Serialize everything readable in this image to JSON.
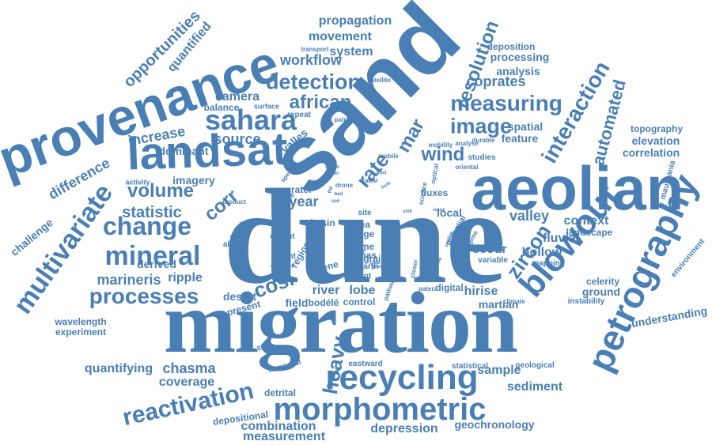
{
  "color": "#4a7fb5",
  "words": [
    {
      "t": "dune",
      "s": "serif"
    },
    {
      "t": "migration",
      "s": "serif"
    },
    {
      "t": "sand",
      "s": "sans"
    },
    {
      "t": "provenance",
      "s": "sans"
    },
    {
      "t": "aeolian",
      "s": "sans"
    },
    {
      "t": "landsat",
      "s": "sans"
    },
    {
      "t": "morphometric",
      "s": "sans"
    },
    {
      "t": "petrography",
      "s": "sans"
    },
    {
      "t": "recycling",
      "s": "sans"
    },
    {
      "t": "blowout",
      "s": "sans"
    },
    {
      "t": "multivariate",
      "s": "sans"
    },
    {
      "t": "mineral",
      "s": "sans"
    },
    {
      "t": "reactivation",
      "s": "sans"
    },
    {
      "t": "sahara",
      "s": "sans"
    },
    {
      "t": "change",
      "s": "sans"
    },
    {
      "t": "processes",
      "s": "sans"
    },
    {
      "t": "interaction",
      "s": "sans"
    },
    {
      "t": "automated",
      "s": "sans"
    },
    {
      "t": "zircon",
      "s": "sans"
    },
    {
      "t": "measuring",
      "s": "sans"
    },
    {
      "t": "resolution",
      "s": "sans"
    },
    {
      "t": "detection",
      "s": "sans"
    },
    {
      "t": "image",
      "s": "sans"
    },
    {
      "t": "volume",
      "s": "sans"
    },
    {
      "t": "heavy",
      "s": "sans"
    },
    {
      "t": "rate",
      "s": "sans"
    },
    {
      "t": "wind",
      "s": "sans"
    },
    {
      "t": "mar",
      "s": "sans"
    },
    {
      "t": "corr",
      "s": "sans"
    },
    {
      "t": "cosi",
      "s": "sans"
    },
    {
      "t": "african",
      "s": "sans"
    },
    {
      "t": "opportunities",
      "s": "sans"
    },
    {
      "t": "quantified",
      "s": "sans"
    },
    {
      "t": "propagation",
      "s": "sans"
    },
    {
      "t": "movement",
      "s": "sans"
    },
    {
      "t": "system",
      "s": "sans"
    },
    {
      "t": "workflow",
      "s": "sans"
    },
    {
      "t": "camera",
      "s": "sans"
    },
    {
      "t": "balance",
      "s": "sans"
    },
    {
      "t": "surface",
      "s": "sans"
    },
    {
      "t": "repeat",
      "s": "sans"
    },
    {
      "t": "pairing",
      "s": "sans"
    },
    {
      "t": "satellite",
      "s": "sans"
    },
    {
      "t": "transport",
      "s": "sans"
    },
    {
      "t": "deposition",
      "s": "sans"
    },
    {
      "t": "processing",
      "s": "sans"
    },
    {
      "t": "analysis",
      "s": "sans"
    },
    {
      "t": "coprates",
      "s": "sans"
    },
    {
      "t": "increase",
      "s": "sans"
    },
    {
      "t": "dominant",
      "s": "sans"
    },
    {
      "t": "source",
      "s": "sans"
    },
    {
      "t": "statistic",
      "s": "sans"
    },
    {
      "t": "difference",
      "s": "sans"
    },
    {
      "t": "imagery",
      "s": "sans"
    },
    {
      "t": "activity",
      "s": "sans"
    },
    {
      "t": "challenge",
      "s": "sans"
    },
    {
      "t": "valles",
      "s": "sans"
    },
    {
      "t": "spatial",
      "s": "sans"
    },
    {
      "t": "feature",
      "s": "sans"
    },
    {
      "t": "topography",
      "s": "sans"
    },
    {
      "t": "elevation",
      "s": "sans"
    },
    {
      "t": "correlation",
      "s": "sans"
    },
    {
      "t": "mauritania",
      "s": "sans"
    },
    {
      "t": "valley",
      "s": "sans"
    },
    {
      "t": "context",
      "s": "sans"
    },
    {
      "t": "landscape",
      "s": "sans"
    },
    {
      "t": "fluvial",
      "s": "sans"
    },
    {
      "t": "hollow",
      "s": "sans"
    },
    {
      "t": "mapping",
      "s": "sans"
    },
    {
      "t": "scour",
      "s": "sans"
    },
    {
      "t": "variable",
      "s": "sans"
    },
    {
      "t": "celerity",
      "s": "sans"
    },
    {
      "t": "ground",
      "s": "sans"
    },
    {
      "t": "instability",
      "s": "sans"
    },
    {
      "t": "environment",
      "s": "sans"
    },
    {
      "t": "understanding",
      "s": "sans"
    },
    {
      "t": "marineris",
      "s": "sans"
    },
    {
      "t": "ripple",
      "s": "sans"
    },
    {
      "t": "derived",
      "s": "sans"
    },
    {
      "t": "desert",
      "s": "sans"
    },
    {
      "t": "present",
      "s": "sans"
    },
    {
      "t": "field",
      "s": "sans"
    },
    {
      "t": "river",
      "s": "sans"
    },
    {
      "t": "lobe",
      "s": "sans"
    },
    {
      "t": "bodélé",
      "s": "sans"
    },
    {
      "t": "control",
      "s": "sans"
    },
    {
      "t": "hirise",
      "s": "sans"
    },
    {
      "t": "martian",
      "s": "sans"
    },
    {
      "t": "climate",
      "s": "sans"
    },
    {
      "t": "wavelength",
      "s": "sans"
    },
    {
      "t": "experiment",
      "s": "sans"
    },
    {
      "t": "quantifying",
      "s": "sans"
    },
    {
      "t": "chasma",
      "s": "sans"
    },
    {
      "t": "coverage",
      "s": "sans"
    },
    {
      "t": "structure",
      "s": "sans"
    },
    {
      "t": "temporal",
      "s": "sans"
    },
    {
      "t": "eastward",
      "s": "sans"
    },
    {
      "t": "statistical",
      "s": "sans"
    },
    {
      "t": "sample",
      "s": "sans"
    },
    {
      "t": "geological",
      "s": "sans"
    },
    {
      "t": "sediment",
      "s": "sans"
    },
    {
      "t": "depositional",
      "s": "sans"
    },
    {
      "t": "detrital",
      "s": "sans"
    },
    {
      "t": "combination",
      "s": "sans"
    },
    {
      "t": "measurement",
      "s": "sans"
    },
    {
      "t": "depression",
      "s": "sans"
    },
    {
      "t": "geochronology",
      "s": "sans"
    },
    {
      "t": "year",
      "s": "sans"
    },
    {
      "t": "sea",
      "s": "sans"
    },
    {
      "t": "age",
      "s": "sans"
    },
    {
      "t": "time",
      "s": "sans"
    },
    {
      "t": "mas",
      "s": "sans"
    },
    {
      "t": "earth",
      "s": "sans"
    },
    {
      "t": "point",
      "s": "sans"
    },
    {
      "t": "basin",
      "s": "sans"
    },
    {
      "t": "site",
      "s": "sans"
    },
    {
      "t": "grain",
      "s": "sans"
    },
    {
      "t": "multiple",
      "s": "sans"
    },
    {
      "t": "scene",
      "s": "sans"
    },
    {
      "t": "region",
      "s": "sans"
    },
    {
      "t": "local",
      "s": "sans"
    },
    {
      "t": "digital",
      "s": "sans"
    },
    {
      "t": "fluxes",
      "s": "sans"
    },
    {
      "t": "potential",
      "s": "sans"
    },
    {
      "t": "regime",
      "s": "sans"
    },
    {
      "t": "crater",
      "s": "sans"
    },
    {
      "t": "active",
      "s": "sans"
    },
    {
      "t": "product",
      "s": "sans"
    },
    {
      "t": "algeria",
      "s": "sans"
    },
    {
      "t": "output",
      "s": "sans"
    },
    {
      "t": "height",
      "s": "sans"
    },
    {
      "t": "center",
      "s": "sans"
    },
    {
      "t": "studies",
      "s": "sans"
    },
    {
      "t": "oriental",
      "s": "sans"
    },
    {
      "t": "mobility",
      "s": "sans"
    },
    {
      "t": "durable",
      "s": "sans"
    },
    {
      "t": "analyse",
      "s": "sans"
    },
    {
      "t": "mobile",
      "s": "sans"
    },
    {
      "t": "speed",
      "s": "sans"
    },
    {
      "t": "model",
      "s": "sans"
    },
    {
      "t": "drone",
      "s": "sans"
    },
    {
      "t": "radar",
      "s": "sans"
    },
    {
      "t": "science",
      "s": "sans"
    },
    {
      "t": "optical",
      "s": "sans"
    },
    {
      "t": "issue",
      "s": "sans"
    },
    {
      "t": "scaling",
      "s": "sans"
    },
    {
      "t": "pathway",
      "s": "sans"
    },
    {
      "t": "patera",
      "s": "sans"
    },
    {
      "t": "varied",
      "s": "sans"
    },
    {
      "t": "brink",
      "s": "sans"
    },
    {
      "t": "lower",
      "s": "sans"
    },
    {
      "t": "recent",
      "s": "sans"
    },
    {
      "t": "travel",
      "s": "sans"
    },
    {
      "t": "motion",
      "s": "sans"
    },
    {
      "t": "result",
      "s": "sans"
    },
    {
      "t": "closer",
      "s": "sans"
    },
    {
      "t": "grand",
      "s": "sans"
    },
    {
      "t": "chad",
      "s": "sans"
    },
    {
      "t": "rock",
      "s": "sans"
    },
    {
      "t": "slope",
      "s": "sans"
    },
    {
      "t": "scale",
      "s": "sans"
    },
    {
      "t": "built",
      "s": "sans"
    },
    {
      "t": "sink",
      "s": "sans"
    },
    {
      "t": "soil",
      "s": "sans"
    },
    {
      "t": "flip",
      "s": "sans"
    },
    {
      "t": "bed",
      "s": "sans"
    },
    {
      "t": "dust",
      "s": "sans"
    },
    {
      "t": "also",
      "s": "sans"
    }
  ]
}
